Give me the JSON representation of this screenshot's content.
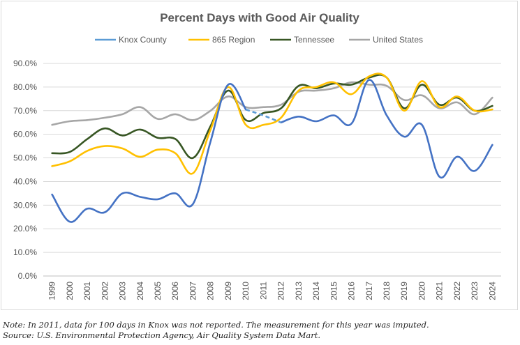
{
  "chart_data": {
    "type": "line",
    "title": "Percent Days with Good Air Quality",
    "xlabel": "",
    "ylabel": "",
    "ylim": [
      0,
      90
    ],
    "yticks": [
      "0.0%",
      "10.0%",
      "20.0%",
      "30.0%",
      "40.0%",
      "50.0%",
      "60.0%",
      "70.0%",
      "80.0%",
      "90.0%"
    ],
    "grid": true,
    "legend": "top",
    "x": [
      "1999",
      "2000",
      "2001",
      "2002",
      "2003",
      "2004",
      "2005",
      "2006",
      "2007",
      "2008",
      "2009",
      "2010",
      "2011",
      "2012",
      "2013",
      "2014",
      "2015",
      "2016",
      "2017",
      "2018",
      "2019",
      "2020",
      "2021",
      "2022",
      "2023",
      "2024"
    ],
    "series": [
      {
        "name": "Knox County",
        "color": "#4472c4",
        "imputed_year": "2011",
        "imputed_color": "#5b9bd5",
        "values": [
          34.5,
          23.0,
          28.5,
          27.0,
          35.0,
          33.5,
          32.5,
          35.0,
          30.5,
          57.0,
          81.0,
          70.5,
          68.0,
          65.0,
          67.5,
          65.5,
          68.0,
          64.5,
          83.0,
          68.0,
          59.0,
          64.0,
          42.0,
          50.5,
          44.5,
          55.5
        ]
      },
      {
        "name": "865 Region",
        "color": "#ffc000",
        "values": [
          46.5,
          48.5,
          53.0,
          55.0,
          54.0,
          50.5,
          53.5,
          52.0,
          43.5,
          62.0,
          80.0,
          64.0,
          64.0,
          67.0,
          78.5,
          80.0,
          82.0,
          77.0,
          84.5,
          84.0,
          70.0,
          82.5,
          71.5,
          76.0,
          70.0,
          70.5
        ]
      },
      {
        "name": "Tennessee",
        "color": "#375623",
        "values": [
          52.0,
          52.5,
          58.0,
          62.5,
          59.5,
          62.0,
          58.5,
          58.0,
          50.0,
          63.5,
          78.5,
          66.0,
          69.0,
          71.0,
          80.5,
          79.5,
          81.5,
          81.0,
          84.0,
          84.0,
          71.0,
          81.0,
          72.5,
          75.5,
          70.0,
          72.0
        ]
      },
      {
        "name": "United States",
        "color": "#a6a6a6",
        "values": [
          64.0,
          65.5,
          66.0,
          67.0,
          68.5,
          71.5,
          66.5,
          68.5,
          66.0,
          70.0,
          76.0,
          71.5,
          71.5,
          72.5,
          78.0,
          78.5,
          79.5,
          82.0,
          81.0,
          80.5,
          74.5,
          76.5,
          71.0,
          73.5,
          68.5,
          75.5
        ]
      }
    ]
  },
  "notes": {
    "note": "Note: In 2011, data for 100 days in Knox was not reported. The measurement for this year was imputed.",
    "source": "Source: U.S. Environmental Protection Agency, Air Quality System Data Mart."
  }
}
